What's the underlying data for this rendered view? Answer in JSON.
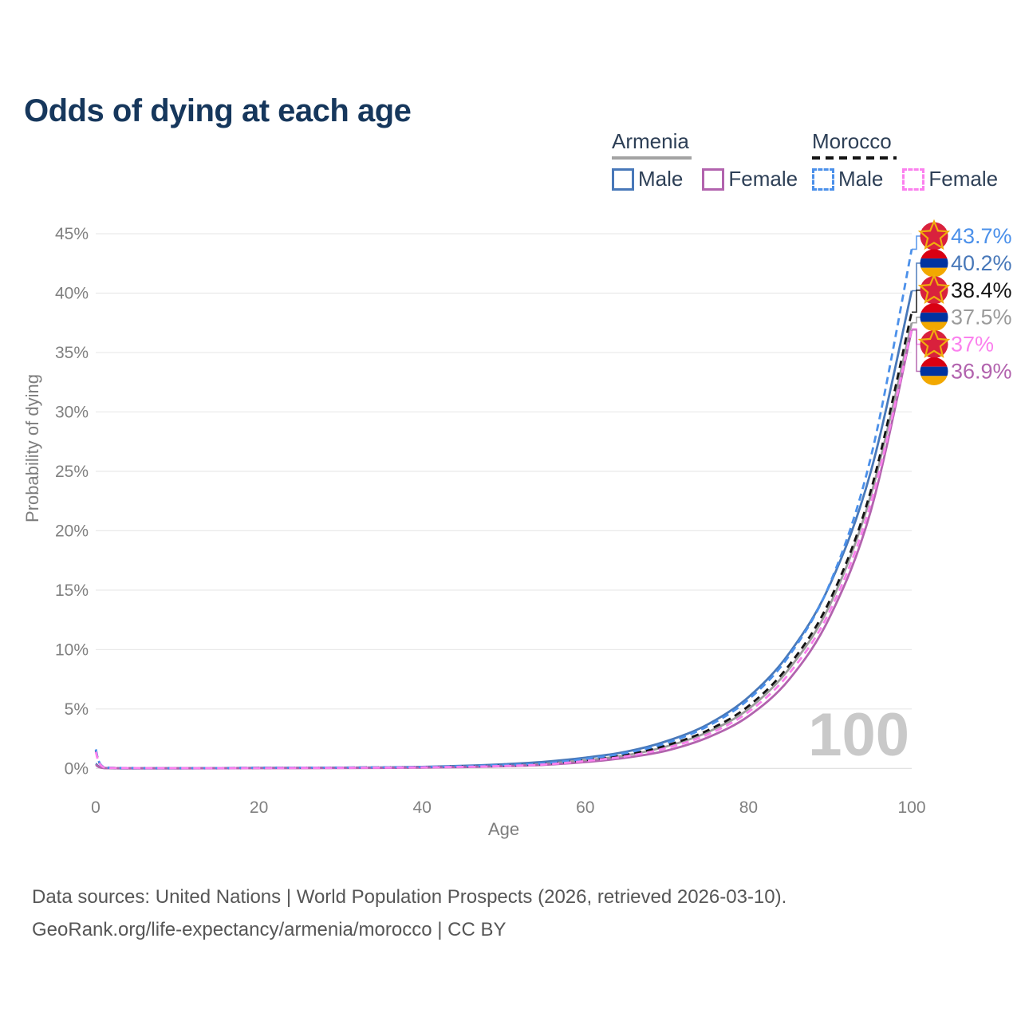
{
  "title": "Odds of dying at each age",
  "legend": {
    "groups": [
      {
        "label": "Armenia",
        "line_style": "solid",
        "underline_color": "#a3a3a3",
        "items": [
          {
            "label": "Male",
            "color": "#4878b9"
          },
          {
            "label": "Female",
            "color": "#b263ae"
          }
        ]
      },
      {
        "label": "Morocco",
        "line_style": "dashed",
        "underline_color": "#141414",
        "items": [
          {
            "label": "Male",
            "color": "#4b90ea"
          },
          {
            "label": "Female",
            "color": "#fb80ee"
          }
        ]
      }
    ]
  },
  "watermark": "100",
  "footer": {
    "line1": "Data sources: United Nations | World Population Prospects (2026, retrieved 2026-03-10).",
    "line2": "GeoRank.org/life-expectancy/armenia/morocco | CC BY"
  },
  "flags": {
    "morocco": {
      "bg": "#d9213d",
      "star": "#f0ad0c"
    },
    "armenia": {
      "top": "#d90012",
      "mid": "#0033a0",
      "bottom": "#f2a800"
    }
  },
  "chart_data": {
    "type": "line",
    "title": "Odds of dying at each age",
    "xlabel": "Age",
    "ylabel": "Probability of dying",
    "xlim": [
      0,
      100
    ],
    "ylim": [
      0,
      45
    ],
    "x_ticks": [
      0,
      20,
      40,
      60,
      80,
      100
    ],
    "y_ticks": [
      0,
      5,
      10,
      15,
      20,
      25,
      30,
      35,
      40,
      45
    ],
    "y_tick_suffix": "%",
    "grid": "horizontal-only",
    "legend_position": "top-right",
    "ages": [
      0,
      1,
      5,
      10,
      15,
      20,
      25,
      30,
      35,
      40,
      45,
      50,
      55,
      60,
      65,
      70,
      75,
      80,
      85,
      90,
      95,
      100
    ],
    "series": [
      {
        "name": "Armenia Both",
        "country": "Armenia",
        "sex": "Both",
        "color": "#9b9b9b",
        "dashed": false,
        "end_label": "37.5%",
        "values": [
          0.35,
          0.03,
          0.01,
          0.01,
          0.02,
          0.03,
          0.04,
          0.05,
          0.06,
          0.1,
          0.16,
          0.26,
          0.43,
          0.68,
          1.1,
          1.85,
          3.05,
          5.0,
          8.4,
          13.8,
          23.0,
          37.5
        ]
      },
      {
        "name": "Armenia Male",
        "country": "Armenia",
        "sex": "Male",
        "color": "#4878b9",
        "dashed": false,
        "end_label": "40.2%",
        "values": [
          0.4,
          0.04,
          0.01,
          0.01,
          0.02,
          0.04,
          0.05,
          0.06,
          0.08,
          0.13,
          0.22,
          0.35,
          0.56,
          0.9,
          1.4,
          2.3,
          3.7,
          6.0,
          9.7,
          15.5,
          25.0,
          40.2
        ]
      },
      {
        "name": "Armenia Female",
        "country": "Armenia",
        "sex": "Female",
        "color": "#b263ae",
        "dashed": false,
        "end_label": "36.9%",
        "values": [
          0.3,
          0.03,
          0.01,
          0.01,
          0.01,
          0.02,
          0.02,
          0.03,
          0.04,
          0.07,
          0.11,
          0.18,
          0.3,
          0.53,
          0.9,
          1.5,
          2.6,
          4.4,
          7.5,
          12.8,
          21.7,
          36.9
        ]
      },
      {
        "name": "Morocco Both",
        "country": "Morocco",
        "sex": "Both",
        "color": "#141414",
        "dashed": true,
        "end_label": "38.4%",
        "values": [
          1.5,
          0.1,
          0.03,
          0.02,
          0.03,
          0.04,
          0.05,
          0.06,
          0.08,
          0.11,
          0.16,
          0.24,
          0.38,
          0.7,
          1.16,
          1.95,
          3.2,
          5.25,
          8.7,
          14.2,
          23.4,
          38.4
        ]
      },
      {
        "name": "Morocco Male",
        "country": "Morocco",
        "sex": "Male",
        "color": "#4b90ea",
        "dashed": true,
        "end_label": "43.7%",
        "values": [
          1.6,
          0.11,
          0.03,
          0.02,
          0.03,
          0.05,
          0.06,
          0.07,
          0.09,
          0.12,
          0.18,
          0.28,
          0.43,
          0.8,
          1.3,
          2.15,
          3.55,
          5.8,
          9.5,
          15.6,
          26.2,
          43.7
        ]
      },
      {
        "name": "Morocco Female",
        "country": "Morocco",
        "sex": "Female",
        "color": "#fb80ee",
        "dashed": true,
        "end_label": "37%",
        "values": [
          1.4,
          0.09,
          0.03,
          0.02,
          0.02,
          0.03,
          0.04,
          0.05,
          0.06,
          0.09,
          0.13,
          0.2,
          0.33,
          0.62,
          1.02,
          1.72,
          2.85,
          4.75,
          8.0,
          13.3,
          22.3,
          37.0
        ]
      }
    ],
    "end_labels": [
      {
        "flag": "morocco",
        "text": "43.7%",
        "value": 43.7,
        "color": "#4b90ea",
        "series": "Morocco Male"
      },
      {
        "flag": "armenia",
        "text": "40.2%",
        "value": 40.2,
        "color": "#4878b9",
        "series": "Armenia Male"
      },
      {
        "flag": "morocco",
        "text": "38.4%",
        "value": 38.4,
        "color": "#141414",
        "series": "Morocco Both"
      },
      {
        "flag": "armenia",
        "text": "37.5%",
        "value": 37.5,
        "color": "#9b9b9b",
        "series": "Armenia Both"
      },
      {
        "flag": "morocco",
        "text": "37%",
        "value": 37.0,
        "color": "#fb80ee",
        "series": "Morocco Female"
      },
      {
        "flag": "armenia",
        "text": "36.9%",
        "value": 36.9,
        "color": "#b263ae",
        "series": "Armenia Female"
      }
    ]
  }
}
